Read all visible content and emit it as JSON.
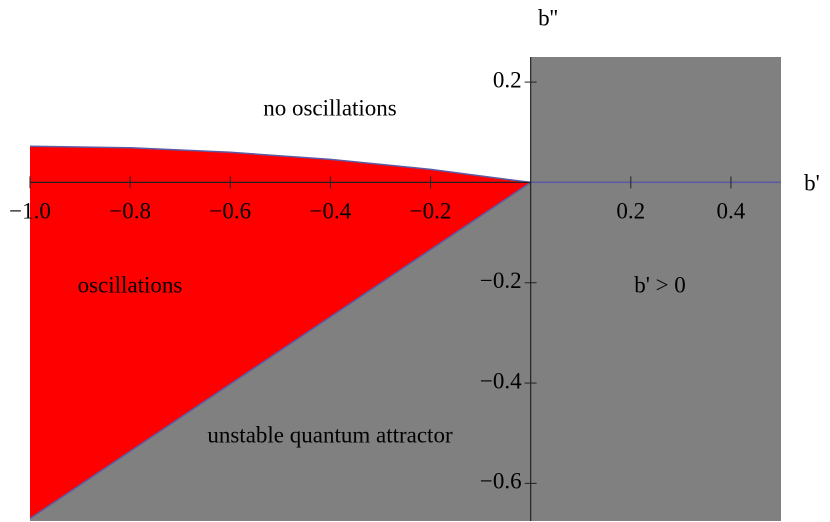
{
  "chart_data": {
    "type": "region",
    "xlabel": "b'",
    "ylabel": "b''",
    "xlim": [
      -1.0,
      0.5
    ],
    "ylim": [
      -0.675,
      0.25
    ],
    "xticks": [
      {
        "value": -1.0,
        "label": "−1.0"
      },
      {
        "value": -0.8,
        "label": "−0.8"
      },
      {
        "value": -0.6,
        "label": "−0.6"
      },
      {
        "value": -0.4,
        "label": "−0.4"
      },
      {
        "value": -0.2,
        "label": "−0.2"
      },
      0.2,
      0.4
    ],
    "yticks": [
      0.2,
      {
        "value": -0.2,
        "label": "−0.2"
      },
      {
        "value": -0.4,
        "label": "−0.4"
      },
      {
        "value": -0.6,
        "label": "−0.6"
      }
    ],
    "upper_boundary": {
      "x": [
        -1.0,
        -0.8,
        -0.6,
        -0.4,
        -0.2,
        0.0
      ],
      "y": [
        0.072,
        0.069,
        0.06,
        0.046,
        0.026,
        0.0
      ]
    },
    "lower_boundary": {
      "x": [
        -1.0,
        0.0
      ],
      "y": [
        -0.67,
        0.0
      ]
    },
    "oscillation_color": "#ff0000",
    "unstable_color": "#808080",
    "line_color": "#5b5ba6",
    "annotations": [
      "no oscillations",
      "oscillations",
      "b' > 0",
      "unstable quantum attractor"
    ]
  }
}
